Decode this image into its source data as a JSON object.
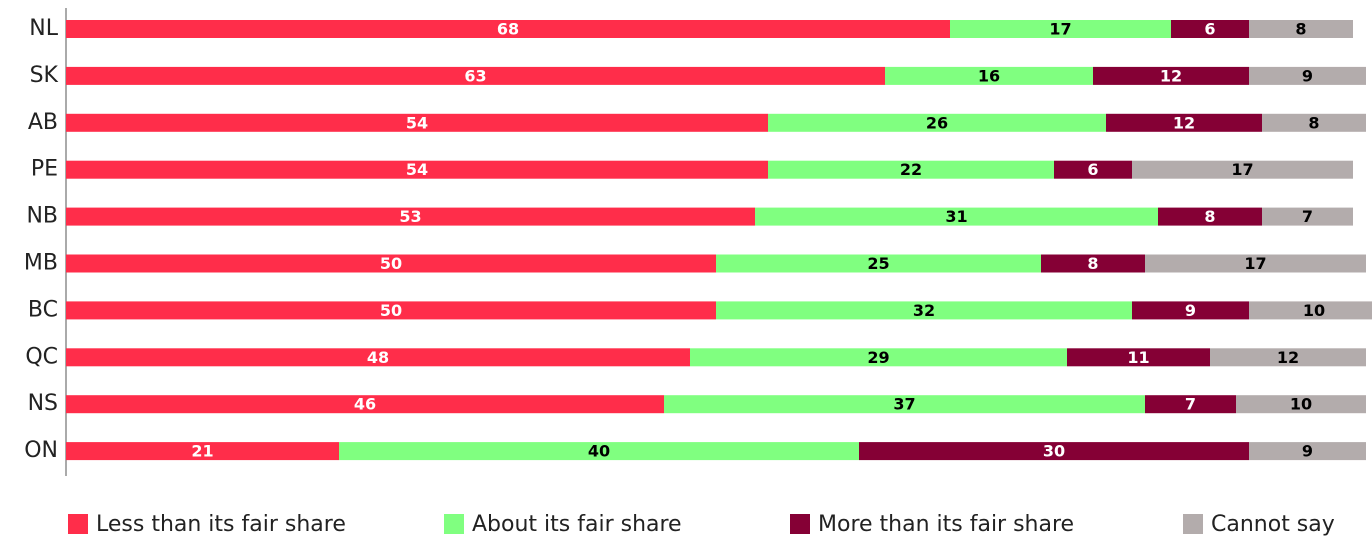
{
  "chart_data": {
    "type": "stacked-bar-horizontal",
    "categories": [
      "NL",
      "SK",
      "AB",
      "PE",
      "NB",
      "MB",
      "BC",
      "QC",
      "NS",
      "ON"
    ],
    "series": [
      {
        "name": "Less than its fair share",
        "color": "#ff2d4a",
        "values": [
          68,
          63,
          54,
          54,
          53,
          50,
          50,
          48,
          46,
          21
        ]
      },
      {
        "name": "About its fair share",
        "color": "#80ff80",
        "values": [
          17,
          16,
          26,
          22,
          31,
          25,
          32,
          29,
          37,
          40
        ]
      },
      {
        "name": "More than its fair share",
        "color": "#850035",
        "values": [
          6,
          12,
          12,
          6,
          8,
          8,
          9,
          11,
          7,
          30
        ]
      },
      {
        "name": "Cannot say",
        "color": "#b3acac",
        "values": [
          8,
          9,
          8,
          17,
          7,
          17,
          10,
          12,
          10,
          9
        ]
      }
    ],
    "xlim": [
      0,
      100
    ],
    "legend": "bottom"
  }
}
